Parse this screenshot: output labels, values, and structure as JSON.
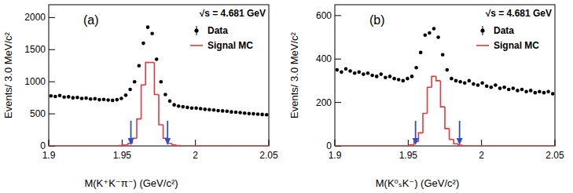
{
  "chart_data": [
    {
      "type": "histogram",
      "panel_label": "(a)",
      "annotation": "√s = 4.681 GeV",
      "x_label": "M(K⁺K⁻π⁻) (GeV/c²)",
      "y_label": "Events/ 3.0 MeV/c²",
      "bins": [
        1.9,
        1.903,
        1.906,
        1.909,
        1.912,
        1.915,
        1.918,
        1.921,
        1.924,
        1.927,
        1.93,
        1.933,
        1.936,
        1.939,
        1.942,
        1.945,
        1.948,
        1.951,
        1.954,
        1.957,
        1.96,
        1.963,
        1.966,
        1.969,
        1.972,
        1.975,
        1.978,
        1.981,
        1.984,
        1.987,
        1.99,
        1.993,
        1.996,
        1.999,
        2.002,
        2.005,
        2.008,
        2.011,
        2.014,
        2.017,
        2.02,
        2.023,
        2.026,
        2.029,
        2.032,
        2.035,
        2.038,
        2.041,
        2.044,
        2.047,
        2.05
      ],
      "series": [
        {
          "name": "Data",
          "type": "scatter",
          "marker": "circle",
          "color": "#000000",
          "values": [
            780,
            770,
            785,
            760,
            765,
            750,
            755,
            740,
            745,
            730,
            735,
            720,
            725,
            715,
            710,
            720,
            740,
            790,
            880,
            1000,
            1250,
            1600,
            1850,
            1750,
            1350,
            1000,
            800,
            700,
            640,
            620,
            610,
            600,
            590,
            590,
            580,
            570,
            565,
            560,
            550,
            545,
            540,
            530,
            525,
            520,
            510,
            505,
            500,
            495,
            490,
            485
          ]
        },
        {
          "name": "Signal MC",
          "type": "step",
          "color": "#e8383d",
          "values": [
            0,
            0,
            0,
            0,
            0,
            0,
            0,
            0,
            0,
            0,
            0,
            0,
            0,
            0,
            0,
            0,
            5,
            15,
            40,
            120,
            420,
            950,
            1300,
            1300,
            800,
            330,
            120,
            40,
            15,
            5,
            0,
            0,
            0,
            0,
            0,
            0,
            0,
            0,
            0,
            0,
            0,
            0,
            0,
            0,
            0,
            0,
            0,
            0,
            0,
            0
          ]
        }
      ],
      "cuts": [
        1.956,
        1.981
      ],
      "xlim": [
        1.9,
        2.05
      ],
      "xticks": [
        1.9,
        1.95,
        2,
        2.05
      ],
      "ylim": [
        0,
        2200
      ],
      "yticks": [
        0,
        500,
        1000,
        1500,
        2000
      ],
      "legend": "upper right"
    },
    {
      "type": "histogram",
      "panel_label": "(b)",
      "annotation": "√s = 4.681 GeV",
      "x_label": "M(K⁰ₛK⁻) (GeV/c²)",
      "y_label": "Events/ 3.0 MeV/c²",
      "bins": [
        1.9,
        1.903,
        1.906,
        1.909,
        1.912,
        1.915,
        1.918,
        1.921,
        1.924,
        1.927,
        1.93,
        1.933,
        1.936,
        1.939,
        1.942,
        1.945,
        1.948,
        1.951,
        1.954,
        1.957,
        1.96,
        1.963,
        1.966,
        1.969,
        1.972,
        1.975,
        1.978,
        1.981,
        1.984,
        1.987,
        1.99,
        1.993,
        1.996,
        1.999,
        2.002,
        2.005,
        2.008,
        2.011,
        2.014,
        2.017,
        2.02,
        2.023,
        2.026,
        2.029,
        2.032,
        2.035,
        2.038,
        2.041,
        2.044,
        2.047,
        2.05
      ],
      "series": [
        {
          "name": "Data",
          "type": "scatter",
          "marker": "circle",
          "color": "#000000",
          "values": [
            350,
            340,
            355,
            345,
            335,
            340,
            330,
            335,
            325,
            320,
            330,
            315,
            320,
            310,
            305,
            300,
            310,
            320,
            360,
            430,
            510,
            520,
            540,
            500,
            420,
            350,
            310,
            300,
            295,
            290,
            300,
            285,
            280,
            290,
            275,
            270,
            280,
            265,
            270,
            260,
            265,
            255,
            260,
            250,
            255,
            245,
            250,
            245,
            250,
            240
          ]
        },
        {
          "name": "Signal MC",
          "type": "step",
          "color": "#e8383d",
          "values": [
            0,
            0,
            0,
            0,
            0,
            0,
            0,
            0,
            0,
            0,
            0,
            0,
            0,
            0,
            0,
            0,
            0,
            5,
            20,
            60,
            150,
            270,
            320,
            300,
            180,
            80,
            30,
            10,
            3,
            0,
            0,
            0,
            0,
            0,
            0,
            0,
            0,
            0,
            0,
            0,
            0,
            0,
            0,
            0,
            0,
            0,
            0,
            0,
            0,
            0
          ]
        }
      ],
      "cuts": [
        1.955,
        1.985
      ],
      "xlim": [
        1.9,
        2.05
      ],
      "xticks": [
        1.9,
        1.95,
        2,
        2.05
      ],
      "ylim": [
        0,
        650
      ],
      "yticks": [
        0,
        200,
        400,
        600
      ],
      "legend": "upper right"
    }
  ]
}
